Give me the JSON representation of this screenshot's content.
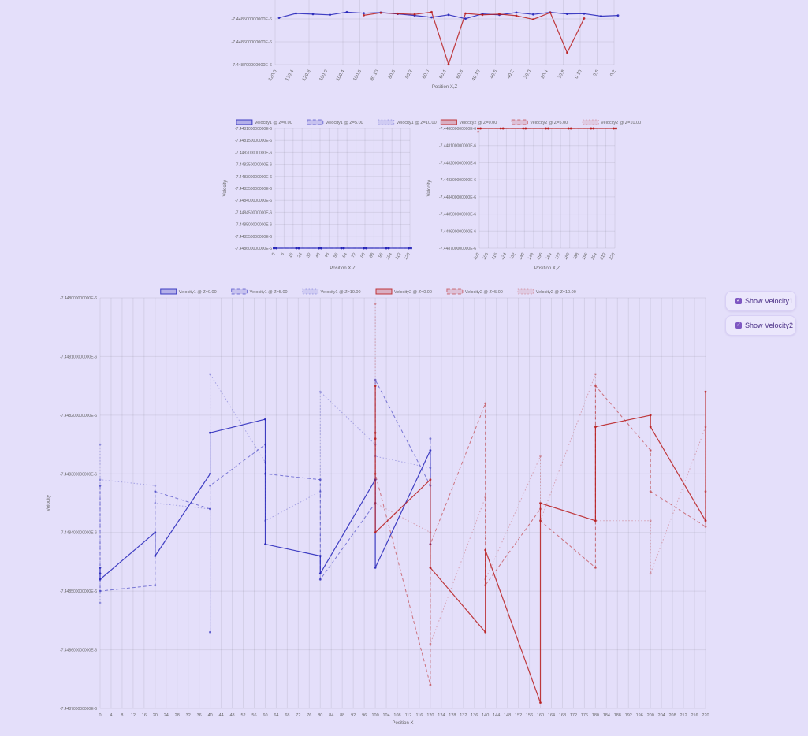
{
  "controls": {
    "show_velocity1": {
      "label": "Show Velocity1",
      "checked": true
    },
    "show_velocity2": {
      "label": "Show Velocity2",
      "checked": true
    }
  },
  "colors": {
    "velocity1": "#2323b8",
    "velocity2": "#b81c1c",
    "background": "#e4dffa"
  },
  "chart_data": [
    {
      "id": "top",
      "type": "line",
      "xlabel": "Position X,Z",
      "ylabel": "",
      "ylim": [
        -7.44487e-06,
        -7.44485e-06
      ],
      "yticks": [
        "-7.448500000000E-6",
        "-7.448600000000E-6",
        "-7.448700000000E-6"
      ],
      "tick_labels": [
        "120.0",
        "120.4",
        "120.8",
        "100.0",
        "100.4",
        "100.8",
        "80.10",
        "80.8",
        "80.2",
        "60.0",
        "60.4",
        "60.8",
        "40.10",
        "40.6",
        "40.2",
        "20.0",
        "20.4",
        "20.8",
        "0.10",
        "0.6",
        "0.2"
      ],
      "series": [
        {
          "group": "velocity1",
          "values": [
            -7.448495e-06,
            -7.448476e-06,
            -7.448479e-06,
            -7.448482e-06,
            -7.44847e-06,
            -7.448475e-06,
            -7.448472e-06,
            -7.448478e-06,
            -7.448485e-06,
            -7.448493e-06,
            -7.448482e-06,
            -7.448499e-06,
            -7.448478e-06,
            -7.448482e-06,
            -7.448472e-06,
            -7.44848e-06,
            -7.448471e-06,
            -7.448478e-06,
            -7.448477e-06,
            -7.448488e-06,
            -7.448485e-06
          ]
        },
        {
          "group": "velocity2",
          "values": [
            null,
            null,
            null,
            null,
            null,
            -7.448484e-06,
            -7.448473e-06,
            -7.448477e-06,
            -7.44848e-06,
            -7.44847e-06,
            -7.448699e-06,
            -7.448476e-06,
            -7.448482e-06,
            -7.448479e-06,
            -7.448486e-06,
            -7.448502e-06,
            -7.448472e-06,
            -7.448648e-06,
            -7.448498e-06,
            null,
            null
          ]
        }
      ]
    },
    {
      "id": "left",
      "type": "line",
      "xlabel": "Position X,Z",
      "ylabel": "Velocity",
      "ylim": [
        -7.44486e-06,
        -7.44481e-06
      ],
      "yticks": [
        "-7.448100000000E-6",
        "-7.448150000000E-6",
        "-7.448200000000E-6",
        "-7.448250000000E-6",
        "-7.448300000000E-6",
        "-7.448350000000E-6",
        "-7.448400000000E-6",
        "-7.448450000000E-6",
        "-7.448500000000E-6",
        "-7.448550000000E-6",
        "-7.448600000000E-6"
      ],
      "tick_labels": [
        "0",
        "8",
        "16",
        "24",
        "32",
        "40",
        "48",
        "56",
        "64",
        "72",
        "80",
        "88",
        "96",
        "104",
        "112",
        "120"
      ],
      "legend": [
        "Velocity1 @ Z=0.00",
        "Velocity1 @ Z=5.00",
        "Velocity1 @ Z=10.00"
      ],
      "legend_color": "velocity1"
    },
    {
      "id": "right",
      "type": "line",
      "xlabel": "Position X,Z",
      "ylabel": "Velocity",
      "ylim": [
        -7.44487e-06,
        -7.4481e-06
      ],
      "yticks": [
        "-7.448000000000E-6",
        "-7.448100000000E-6",
        "-7.448200000000E-6",
        "-7.448300000000E-6",
        "-7.448400000000E-6",
        "-7.448500000000E-6",
        "-7.448600000000E-6",
        "-7.448700000000E-6"
      ],
      "tick_labels": [
        "100",
        "108",
        "116",
        "124",
        "132",
        "140",
        "148",
        "156",
        "164",
        "172",
        "180",
        "188",
        "196",
        "204",
        "212",
        "220"
      ],
      "legend": [
        "Velocity2 @ Z=0.00",
        "Velocity2 @ Z=5.00",
        "Velocity2 @ Z=10.00"
      ],
      "legend_color": "velocity2"
    },
    {
      "id": "main",
      "type": "line",
      "xlabel": "Position X",
      "ylabel": "Velocity",
      "xlim": [
        0,
        220
      ],
      "ylim": [
        -7.4487e-06,
        -7.448e-06
      ],
      "yticks": [
        "-7.448000000000E-6",
        "-7.448100000000E-6",
        "-7.448200000000E-6",
        "-7.448300000000E-6",
        "-7.448400000000E-6",
        "-7.448500000000E-6",
        "-7.448600000000E-6",
        "-7.448700000000E-6"
      ],
      "tick_labels": [
        "0",
        "4",
        "8",
        "12",
        "16",
        "20",
        "24",
        "28",
        "32",
        "36",
        "40",
        "44",
        "48",
        "52",
        "56",
        "60",
        "64",
        "68",
        "72",
        "76",
        "80",
        "84",
        "88",
        "92",
        "96",
        "100",
        "104",
        "108",
        "112",
        "116",
        "120",
        "124",
        "128",
        "132",
        "136",
        "140",
        "144",
        "148",
        "152",
        "156",
        "160",
        "164",
        "168",
        "172",
        "176",
        "180",
        "184",
        "188",
        "192",
        "196",
        "200",
        "204",
        "208",
        "212",
        "216",
        "220"
      ],
      "legend": [
        "Velocity1 @ Z=0.00",
        "Velocity1 @ Z=5.00",
        "Velocity1 @ Z=10.00",
        "Velocity2 @ Z=0.00",
        "Velocity2 @ Z=5.00",
        "Velocity2 @ Z=10.00"
      ],
      "series": [
        {
          "group": "velocity1",
          "z": 0,
          "points": [
            [
              0,
              -7.44846e-06
            ],
            [
              0,
              -7.44847e-06
            ],
            [
              0,
              -7.44848e-06
            ],
            [
              20,
              -7.4484e-06
            ],
            [
              20,
              -7.44844e-06
            ],
            [
              40,
              -7.4483e-06
            ],
            [
              40,
              -7.44823e-06
            ],
            [
              40,
              -7.44823e-06
            ],
            [
              60,
              -7.448207e-06
            ],
            [
              60,
              -7.44842e-06
            ],
            [
              80,
              -7.44844e-06
            ],
            [
              80,
              -7.44847e-06
            ],
            [
              100,
              -7.44831e-06
            ],
            [
              100,
              -7.44846e-06
            ],
            [
              120,
              -7.44826e-06
            ],
            [
              120,
              -7.44842e-06
            ]
          ]
        },
        {
          "group": "velocity1",
          "z": 5,
          "points": [
            [
              0,
              -7.44832e-06
            ],
            [
              0,
              -7.4485e-06
            ],
            [
              20,
              -7.44849e-06
            ],
            [
              20,
              -7.44833e-06
            ],
            [
              40,
              -7.44836e-06
            ],
            [
              40,
              -7.44857e-06
            ],
            [
              40,
              -7.44832e-06
            ],
            [
              60,
              -7.44825e-06
            ],
            [
              60,
              -7.4483e-06
            ],
            [
              80,
              -7.44831e-06
            ],
            [
              80,
              -7.44848e-06
            ],
            [
              100,
              -7.44835e-06
            ],
            [
              100,
              -7.44814e-06
            ],
            [
              120,
              -7.44832e-06
            ],
            [
              120,
              -7.44824e-06
            ]
          ]
        },
        {
          "group": "velocity1",
          "z": 10,
          "points": [
            [
              0,
              -7.44825e-06
            ],
            [
              0,
              -7.44852e-06
            ],
            [
              0,
              -7.44831e-06
            ],
            [
              20,
              -7.44832e-06
            ],
            [
              20,
              -7.44835e-06
            ],
            [
              40,
              -7.44836e-06
            ],
            [
              40,
              -7.44857e-06
            ],
            [
              40,
              -7.44813e-06
            ],
            [
              60,
              -7.44828e-06
            ],
            [
              60,
              -7.44838e-06
            ],
            [
              80,
              -7.44833e-06
            ],
            [
              80,
              -7.44848e-06
            ],
            [
              80,
              -7.44816e-06
            ],
            [
              100,
              -7.44825e-06
            ],
            [
              100,
              -7.44827e-06
            ],
            [
              120,
              -7.44829e-06
            ],
            [
              120,
              -7.44846e-06
            ]
          ]
        },
        {
          "group": "velocity2",
          "z": 0,
          "points": [
            [
              100,
              -7.44815e-06
            ],
            [
              100,
              -7.44824e-06
            ],
            [
              100,
              -7.4484e-06
            ],
            [
              120,
              -7.44831e-06
            ],
            [
              120,
              -7.44846e-06
            ],
            [
              140,
              -7.44857e-06
            ],
            [
              140,
              -7.44843e-06
            ],
            [
              160,
              -7.44869e-06
            ],
            [
              160,
              -7.44835e-06
            ],
            [
              180,
              -7.44838e-06
            ],
            [
              180,
              -7.44822e-06
            ],
            [
              200,
              -7.4482e-06
            ],
            [
              200,
              -7.44822e-06
            ],
            [
              220,
              -7.44838e-06
            ],
            [
              220,
              -7.44816e-06
            ]
          ]
        },
        {
          "group": "velocity2",
          "z": 5,
          "points": [
            [
              100,
              -7.44823e-06
            ],
            [
              100,
              -7.4483e-06
            ],
            [
              120,
              -7.44866e-06
            ],
            [
              120,
              -7.44842e-06
            ],
            [
              140,
              -7.44818e-06
            ],
            [
              140,
              -7.44849e-06
            ],
            [
              160,
              -7.44836e-06
            ],
            [
              160,
              -7.44838e-06
            ],
            [
              180,
              -7.44846e-06
            ],
            [
              180,
              -7.44815e-06
            ],
            [
              200,
              -7.44826e-06
            ],
            [
              200,
              -7.44833e-06
            ],
            [
              220,
              -7.44839e-06
            ],
            [
              220,
              -7.44833e-06
            ]
          ]
        },
        {
          "group": "velocity2",
          "z": 10,
          "points": [
            [
              100,
              -7.44801e-06
            ],
            [
              100,
              -7.44835e-06
            ],
            [
              120,
              -7.4484e-06
            ],
            [
              120,
              -7.44859e-06
            ],
            [
              140,
              -7.44834e-06
            ],
            [
              140,
              -7.44848e-06
            ],
            [
              160,
              -7.44827e-06
            ],
            [
              160,
              -7.44838e-06
            ],
            [
              180,
              -7.44813e-06
            ],
            [
              180,
              -7.44838e-06
            ],
            [
              200,
              -7.44838e-06
            ],
            [
              200,
              -7.44847e-06
            ],
            [
              220,
              -7.44822e-06
            ],
            [
              220,
              -7.44838e-06
            ]
          ]
        }
      ]
    }
  ]
}
